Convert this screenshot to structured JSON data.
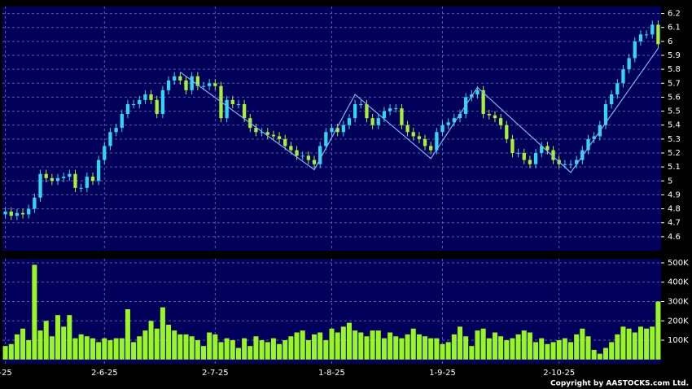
{
  "chart_data": [
    {
      "type": "candlestick",
      "up_color": "#33d6f0",
      "down_color": "#a6f03a",
      "grid": true,
      "open": [
        4.76,
        4.78,
        4.75,
        4.77,
        4.76,
        4.8,
        4.88,
        5.05,
        5.02,
        5.0,
        5.02,
        5.03,
        5.05,
        4.95,
        4.95,
        5.03,
        5.0,
        5.15,
        5.25,
        5.35,
        5.38,
        5.48,
        5.55,
        5.55,
        5.58,
        5.62,
        5.58,
        5.48,
        5.65,
        5.72,
        5.75,
        5.72,
        5.65,
        5.75,
        5.68,
        5.68,
        5.7,
        5.68,
        5.45,
        5.58,
        5.55,
        5.55,
        5.45,
        5.38,
        5.35,
        5.35,
        5.33,
        5.32,
        5.3,
        5.25,
        5.22,
        5.18,
        5.18,
        5.15,
        5.12,
        5.25,
        5.35,
        5.38,
        5.35,
        5.4,
        5.45,
        5.55,
        5.55,
        5.45,
        5.4,
        5.45,
        5.5,
        5.52,
        5.52,
        5.4,
        5.35,
        5.32,
        5.3,
        5.25,
        5.22,
        5.35,
        5.4,
        5.42,
        5.45,
        5.48,
        5.6,
        5.62,
        5.65,
        5.48,
        5.47,
        5.45,
        5.4,
        5.3,
        5.2,
        5.2,
        5.15,
        5.12,
        5.2,
        5.25,
        5.22,
        5.15,
        5.12,
        5.12,
        5.12,
        5.15,
        5.22,
        5.3,
        5.32,
        5.4,
        5.55,
        5.62,
        5.7,
        5.8,
        5.88,
        6.0,
        6.05,
        6.05,
        6.12
      ],
      "high": [
        4.81,
        4.81,
        4.8,
        4.8,
        4.83,
        4.91,
        5.08,
        5.08,
        5.05,
        5.05,
        5.06,
        5.08,
        5.08,
        4.98,
        5.06,
        5.06,
        5.18,
        5.28,
        5.38,
        5.41,
        5.51,
        5.58,
        5.58,
        5.61,
        5.65,
        5.65,
        5.61,
        5.68,
        5.75,
        5.78,
        5.78,
        5.75,
        5.78,
        5.78,
        5.71,
        5.73,
        5.73,
        5.71,
        5.61,
        5.61,
        5.58,
        5.58,
        5.48,
        5.41,
        5.38,
        5.38,
        5.36,
        5.35,
        5.33,
        5.28,
        5.25,
        5.21,
        5.21,
        5.18,
        5.28,
        5.38,
        5.41,
        5.41,
        5.43,
        5.48,
        5.58,
        5.58,
        5.58,
        5.48,
        5.48,
        5.53,
        5.55,
        5.55,
        5.55,
        5.43,
        5.38,
        5.35,
        5.33,
        5.28,
        5.38,
        5.43,
        5.45,
        5.48,
        5.51,
        5.63,
        5.65,
        5.68,
        5.68,
        5.51,
        5.5,
        5.48,
        5.43,
        5.33,
        5.23,
        5.23,
        5.18,
        5.23,
        5.28,
        5.28,
        5.25,
        5.18,
        5.15,
        5.15,
        5.18,
        5.25,
        5.33,
        5.35,
        5.43,
        5.58,
        5.65,
        5.73,
        5.83,
        5.91,
        6.03,
        6.08,
        6.08,
        6.15,
        6.15
      ],
      "low": [
        4.73,
        4.72,
        4.72,
        4.73,
        4.73,
        4.77,
        4.85,
        4.99,
        4.97,
        4.97,
        4.99,
        5.0,
        4.92,
        4.92,
        4.92,
        4.97,
        4.97,
        5.12,
        5.22,
        5.32,
        5.35,
        5.45,
        5.52,
        5.52,
        5.55,
        5.55,
        5.45,
        5.45,
        5.62,
        5.69,
        5.69,
        5.62,
        5.62,
        5.65,
        5.65,
        5.65,
        5.65,
        5.42,
        5.42,
        5.52,
        5.52,
        5.42,
        5.35,
        5.32,
        5.32,
        5.3,
        5.29,
        5.27,
        5.22,
        5.19,
        5.15,
        5.15,
        5.12,
        5.09,
        5.09,
        5.22,
        5.32,
        5.32,
        5.32,
        5.37,
        5.42,
        5.52,
        5.42,
        5.37,
        5.37,
        5.42,
        5.47,
        5.49,
        5.37,
        5.32,
        5.29,
        5.27,
        5.22,
        5.19,
        5.19,
        5.32,
        5.37,
        5.39,
        5.42,
        5.45,
        5.57,
        5.59,
        5.45,
        5.44,
        5.42,
        5.37,
        5.27,
        5.17,
        5.17,
        5.12,
        5.09,
        5.09,
        5.17,
        5.19,
        5.12,
        5.09,
        5.09,
        5.09,
        5.09,
        5.12,
        5.19,
        5.27,
        5.29,
        5.37,
        5.52,
        5.59,
        5.67,
        5.77,
        5.85,
        5.97,
        6.02,
        6.02,
        5.95
      ],
      "close": [
        4.78,
        4.75,
        4.77,
        4.76,
        4.8,
        4.88,
        5.05,
        5.02,
        5.0,
        5.02,
        5.03,
        5.05,
        4.95,
        4.95,
        5.03,
        5.0,
        5.15,
        5.25,
        5.35,
        5.38,
        5.48,
        5.55,
        5.55,
        5.58,
        5.62,
        5.58,
        5.48,
        5.65,
        5.72,
        5.75,
        5.72,
        5.65,
        5.75,
        5.68,
        5.68,
        5.7,
        5.68,
        5.45,
        5.58,
        5.55,
        5.55,
        5.45,
        5.38,
        5.35,
        5.35,
        5.33,
        5.32,
        5.3,
        5.25,
        5.22,
        5.18,
        5.18,
        5.15,
        5.12,
        5.25,
        5.35,
        5.38,
        5.35,
        5.4,
        5.45,
        5.55,
        5.55,
        5.45,
        5.4,
        5.45,
        5.5,
        5.52,
        5.52,
        5.4,
        5.35,
        5.32,
        5.3,
        5.25,
        5.22,
        5.35,
        5.4,
        5.42,
        5.45,
        5.48,
        5.6,
        5.62,
        5.65,
        5.48,
        5.47,
        5.45,
        5.4,
        5.3,
        5.2,
        5.2,
        5.15,
        5.12,
        5.2,
        5.25,
        5.22,
        5.15,
        5.12,
        5.12,
        5.12,
        5.15,
        5.22,
        5.3,
        5.32,
        5.4,
        5.55,
        5.62,
        5.7,
        5.8,
        5.88,
        6.0,
        6.05,
        6.05,
        6.12,
        5.98
      ],
      "zigzag": {
        "color": "#7fb2f0",
        "x": [
          30,
          53,
          60,
          73,
          81,
          97,
          112
        ],
        "values": [
          5.78,
          5.08,
          5.62,
          5.16,
          5.67,
          5.06,
          5.95
        ]
      },
      "ylim": [
        4.5,
        6.25
      ],
      "yticks": [
        4.6,
        4.7,
        4.8,
        4.9,
        5,
        5.1,
        5.2,
        5.3,
        5.4,
        5.5,
        5.6,
        5.7,
        5.8,
        5.9,
        6,
        6.1,
        6.2
      ]
    },
    {
      "type": "bar",
      "color": "#99f526",
      "grid": true,
      "values": [
        70000,
        80000,
        130000,
        160000,
        100000,
        490000,
        150000,
        200000,
        120000,
        230000,
        170000,
        230000,
        110000,
        130000,
        120000,
        110000,
        90000,
        110000,
        100000,
        110000,
        110000,
        260000,
        90000,
        120000,
        150000,
        200000,
        160000,
        270000,
        180000,
        150000,
        130000,
        130000,
        120000,
        100000,
        70000,
        140000,
        130000,
        90000,
        110000,
        100000,
        60000,
        110000,
        70000,
        120000,
        100000,
        90000,
        110000,
        80000,
        100000,
        120000,
        140000,
        150000,
        100000,
        130000,
        140000,
        100000,
        160000,
        140000,
        170000,
        190000,
        150000,
        140000,
        120000,
        150000,
        150000,
        110000,
        140000,
        120000,
        110000,
        130000,
        160000,
        130000,
        120000,
        110000,
        110000,
        80000,
        90000,
        130000,
        170000,
        120000,
        70000,
        150000,
        160000,
        110000,
        140000,
        120000,
        100000,
        110000,
        130000,
        150000,
        140000,
        90000,
        110000,
        80000,
        90000,
        100000,
        110000,
        90000,
        130000,
        160000,
        120000,
        50000,
        30000,
        60000,
        90000,
        130000,
        170000,
        160000,
        140000,
        170000,
        160000,
        170000,
        300000
      ],
      "ylim": [
        -22000,
        521000
      ],
      "yticks": [
        {
          "value": 100000,
          "label": "100K"
        },
        {
          "value": 200000,
          "label": "200K"
        },
        {
          "value": 300000,
          "label": "300K"
        },
        {
          "value": 400000,
          "label": "400K"
        },
        {
          "value": 500000,
          "label": "500K"
        }
      ],
      "xlim": [
        -0.5,
        112.5
      ],
      "xticks": [
        {
          "value": 0,
          "label": "-25"
        },
        {
          "value": 17,
          "label": "2-6-25"
        },
        {
          "value": 36,
          "label": "2-7-25"
        },
        {
          "value": 56,
          "label": "1-8-25"
        },
        {
          "value": 75,
          "label": "1-9-25"
        },
        {
          "value": 95,
          "label": "2-10-25"
        }
      ],
      "annotations": [
        "Copyright by AASTOCKS.com Ltd."
      ]
    }
  ]
}
